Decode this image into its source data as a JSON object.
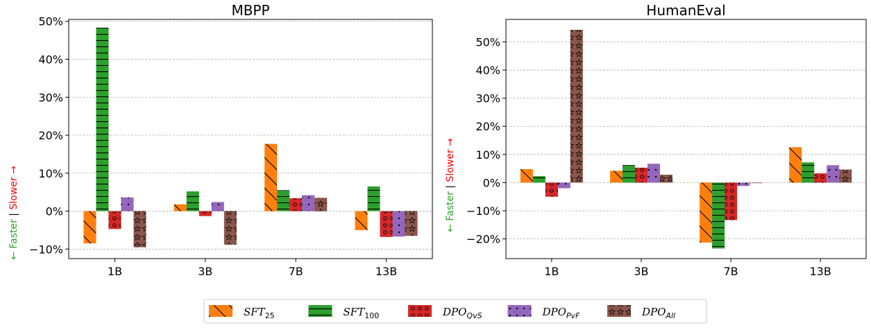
{
  "chart_data": [
    {
      "type": "bar",
      "title": "MBPP",
      "categories": [
        "1B",
        "3B",
        "7B",
        "13B"
      ],
      "series": [
        {
          "name": "SFT25",
          "values": [
            -8.5,
            1.8,
            17.7,
            -5.0
          ]
        },
        {
          "name": "SFT100",
          "values": [
            48.3,
            5.2,
            5.5,
            6.5
          ]
        },
        {
          "name": "DPOQvS",
          "values": [
            -4.7,
            -1.3,
            3.4,
            -6.8
          ]
        },
        {
          "name": "DPOPvF",
          "values": [
            3.6,
            2.4,
            4.2,
            -6.7
          ]
        },
        {
          "name": "DPOAll",
          "values": [
            -9.5,
            -8.8,
            3.5,
            -6.5
          ]
        }
      ],
      "ylim": [
        -12.5,
        50.5
      ],
      "yticks": [
        -10,
        0,
        10,
        20,
        30,
        40,
        50
      ],
      "ytick_labels": [
        "−10%",
        "0%",
        "10%",
        "20%",
        "30%",
        "40%",
        "50%"
      ],
      "grid": "horizontal dashed"
    },
    {
      "type": "bar",
      "title": "HumanEval",
      "categories": [
        "1B",
        "3B",
        "7B",
        "13B"
      ],
      "series": [
        {
          "name": "SFT25",
          "values": [
            4.8,
            4.2,
            -21.3,
            12.6
          ]
        },
        {
          "name": "SFT100",
          "values": [
            2.3,
            6.2,
            -23.4,
            7.2
          ]
        },
        {
          "name": "DPOQvS",
          "values": [
            -5.0,
            5.3,
            -13.3,
            3.3
          ]
        },
        {
          "name": "DPOPvF",
          "values": [
            -2.0,
            6.7,
            -1.2,
            6.2
          ]
        },
        {
          "name": "DPOAll",
          "values": [
            54.3,
            2.8,
            -0.2,
            4.6
          ]
        }
      ],
      "ylim": [
        -27,
        58
      ],
      "yticks": [
        -20,
        -10,
        0,
        10,
        20,
        30,
        40,
        50
      ],
      "ytick_labels": [
        "−20%",
        "−10%",
        "0%",
        "10%",
        "20%",
        "30%",
        "40%",
        "50%"
      ],
      "grid": "horizontal dashed"
    }
  ],
  "ylabel": {
    "faster": "← Faster",
    "separator": "|",
    "slower": "Slower →"
  },
  "legend": {
    "placement": "bottom-center",
    "items": [
      {
        "main": "SFT",
        "sub": "25",
        "color": "#ff7f0e",
        "pattern": "hatch-diag"
      },
      {
        "main": "SFT",
        "sub": "100",
        "color": "#2ca02c",
        "pattern": "hatch-horiz"
      },
      {
        "main": "DPO",
        "sub": "QvS",
        "color": "#d62728",
        "pattern": "hatch-circle"
      },
      {
        "main": "DPO",
        "sub": "PvF",
        "color": "#9467bd",
        "pattern": "hatch-dot"
      },
      {
        "main": "DPO",
        "sub": "All",
        "color": "#8c564b",
        "pattern": "hatch-star"
      }
    ]
  },
  "colors": {
    "faster": "#2ca02c",
    "slower": "#ff0000",
    "grid": "#b0b0b0"
  }
}
